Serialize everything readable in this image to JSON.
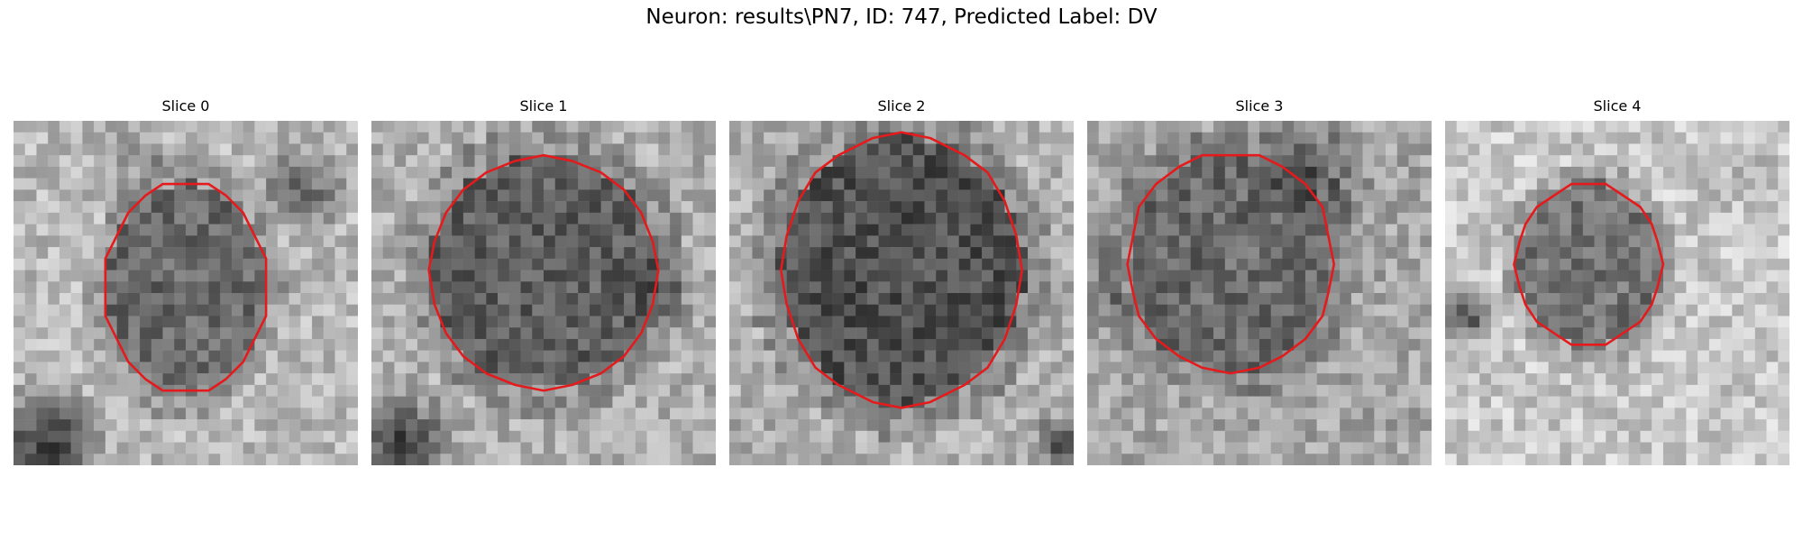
{
  "figure": {
    "title": "Neuron: results\\PN7, ID: 747, Predicted Label: DV"
  },
  "panels": [
    {
      "label": "Slice 0",
      "contour_color": "#e41a1c"
    },
    {
      "label": "Slice 1",
      "contour_color": "#e41a1c"
    },
    {
      "label": "Slice 2",
      "contour_color": "#e41a1c"
    },
    {
      "label": "Slice 3",
      "contour_color": "#e41a1c"
    },
    {
      "label": "Slice 4",
      "contour_color": "#e41a1c"
    }
  ]
}
